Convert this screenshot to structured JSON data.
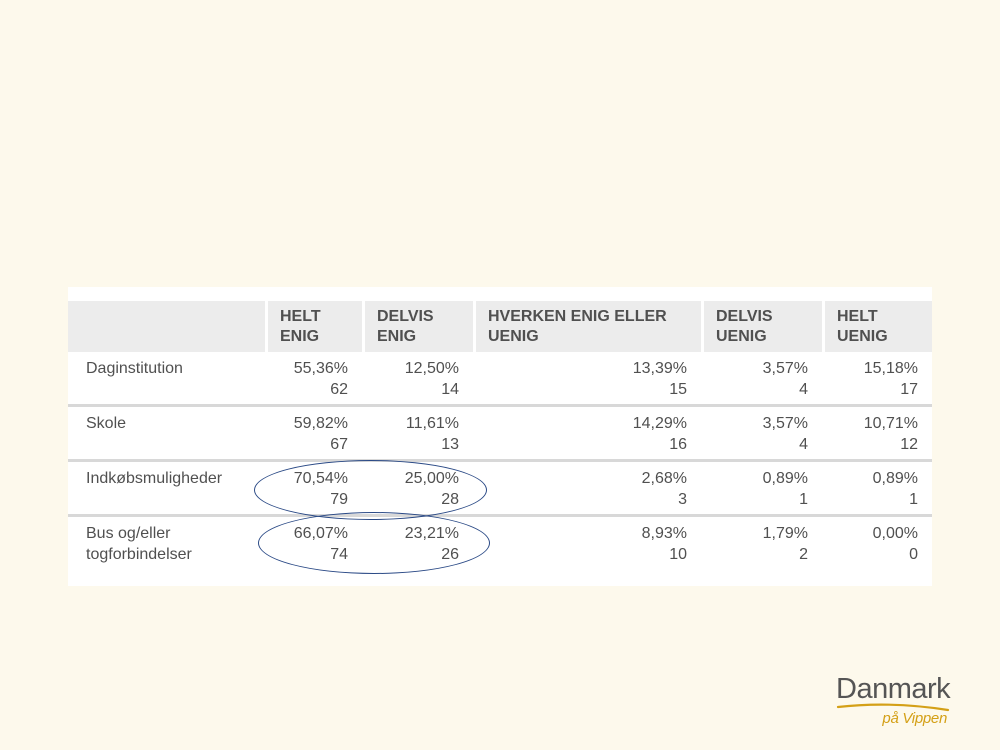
{
  "table": {
    "headers": [
      {
        "line1": "",
        "line2": ""
      },
      {
        "line1": "HELT",
        "line2": "ENIG"
      },
      {
        "line1": "DELVIS",
        "line2": "ENIG"
      },
      {
        "line1": "HVERKEN ENIG ELLER",
        "line2": "UENIG"
      },
      {
        "line1": "DELVIS",
        "line2": "UENIG"
      },
      {
        "line1": "HELT",
        "line2": "UENIG"
      }
    ],
    "rows": [
      {
        "label1": "Daginstitution",
        "label2": "",
        "cells": [
          {
            "pct": "55,36%",
            "n": "62"
          },
          {
            "pct": "12,50%",
            "n": "14"
          },
          {
            "pct": "13,39%",
            "n": "15"
          },
          {
            "pct": "3,57%",
            "n": "4"
          },
          {
            "pct": "15,18%",
            "n": "17"
          }
        ]
      },
      {
        "label1": "Skole",
        "label2": "",
        "cells": [
          {
            "pct": "59,82%",
            "n": "67"
          },
          {
            "pct": "11,61%",
            "n": "13"
          },
          {
            "pct": "14,29%",
            "n": "16"
          },
          {
            "pct": "3,57%",
            "n": "4"
          },
          {
            "pct": "10,71%",
            "n": "12"
          }
        ]
      },
      {
        "label1": "Indkøbsmuligheder",
        "label2": "",
        "cells": [
          {
            "pct": "70,54%",
            "n": "79"
          },
          {
            "pct": "25,00%",
            "n": "28"
          },
          {
            "pct": "2,68%",
            "n": "3"
          },
          {
            "pct": "0,89%",
            "n": "1"
          },
          {
            "pct": "0,89%",
            "n": "1"
          }
        ]
      },
      {
        "label1": "Bus og/eller",
        "label2": "togforbindelser",
        "cells": [
          {
            "pct": "66,07%",
            "n": "74"
          },
          {
            "pct": "23,21%",
            "n": "26"
          },
          {
            "pct": "8,93%",
            "n": "10"
          },
          {
            "pct": "1,79%",
            "n": "2"
          },
          {
            "pct": "0,00%",
            "n": "0"
          }
        ]
      }
    ]
  },
  "logo": {
    "name": "Danmark",
    "tagline": "på Vippen"
  },
  "colors": {
    "background": "#fdf9ec",
    "header_bg": "#ececec",
    "ellipse": "#2b4a86",
    "logo_accent": "#d4a017"
  }
}
